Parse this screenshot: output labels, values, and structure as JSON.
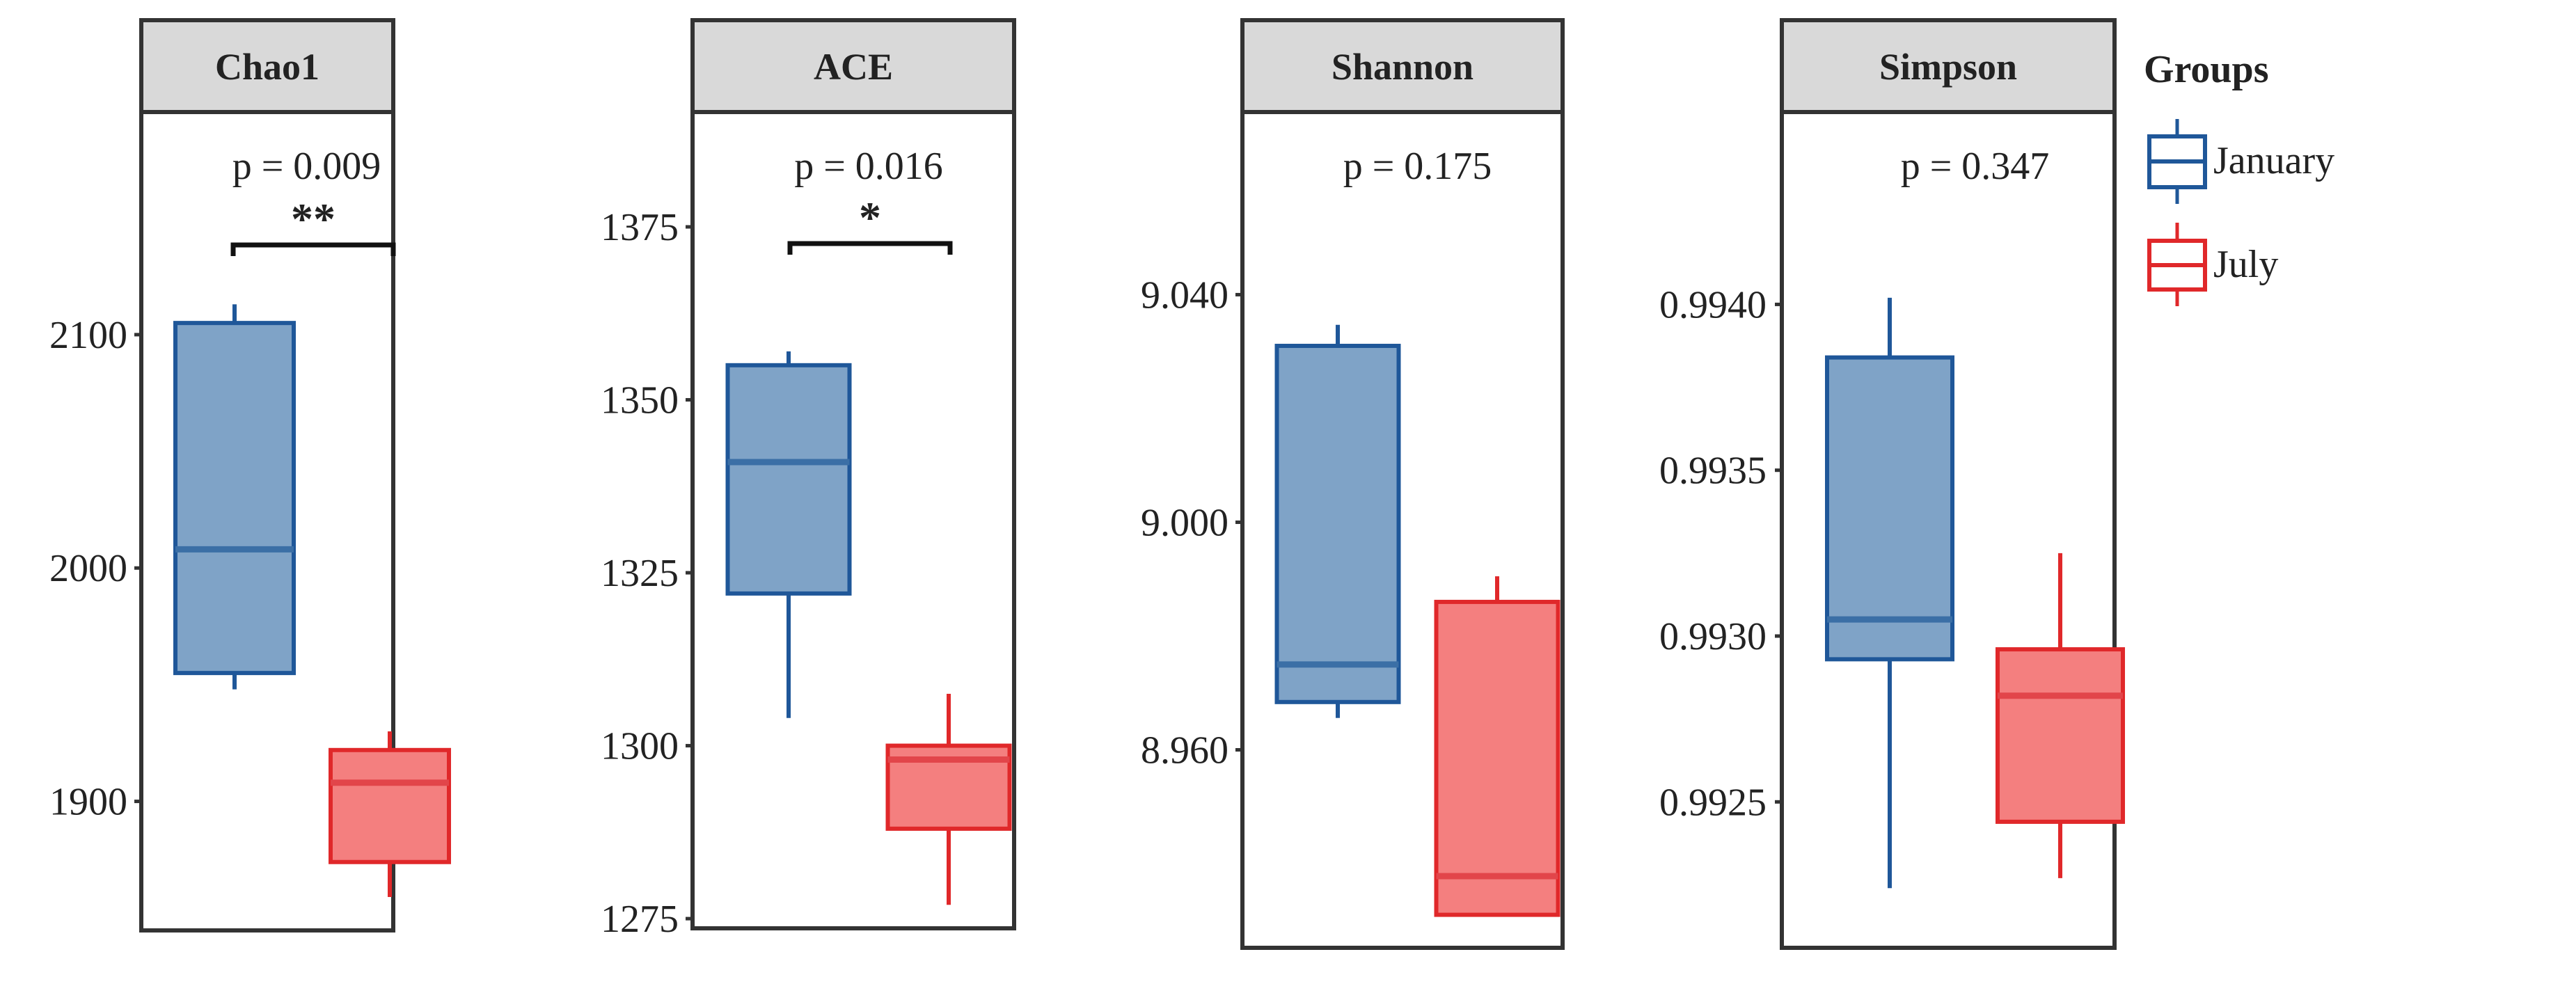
{
  "chart_data": {
    "type": "box",
    "legend": {
      "title": "Groups",
      "position": "right",
      "entries": [
        {
          "name": "January",
          "fill": "#7fa3c7",
          "stroke": "#1f5799"
        },
        {
          "name": "July",
          "fill": "#f47f7f",
          "stroke": "#e0282a"
        }
      ]
    },
    "panels": [
      {
        "title": "Chao1",
        "ylim": [
          1844.7,
          2195.4
        ],
        "yticks": [
          1900,
          2000,
          2100
        ],
        "tick_labels": [
          "1900",
          "2000",
          "2100"
        ],
        "p_value": "p = 0.009",
        "significance": "**",
        "groups": [
          {
            "name": "January",
            "whisker_low": 1948,
            "q1": 1955,
            "median": 2008,
            "q3": 2105,
            "whisker_high": 2113
          },
          {
            "name": "July",
            "whisker_low": 1859,
            "q1": 1874,
            "median": 1908,
            "q3": 1922,
            "whisker_high": 1930
          }
        ]
      },
      {
        "title": "ACE",
        "ylim": [
          1273.6,
          1391.6
        ],
        "yticks": [
          1275,
          1300,
          1325,
          1350,
          1375
        ],
        "tick_labels": [
          "1275",
          "1300",
          "1325",
          "1350",
          "1375"
        ],
        "p_value": "p = 0.016",
        "significance": "*",
        "groups": [
          {
            "name": "January",
            "whisker_low": 1304,
            "q1": 1322,
            "median": 1341,
            "q3": 1355,
            "whisker_high": 1357
          },
          {
            "name": "July",
            "whisker_low": 1277,
            "q1": 1288,
            "median": 1298,
            "q3": 1300,
            "whisker_high": 1307.5
          }
        ]
      },
      {
        "title": "Shannon",
        "ylim": [
          8.9252,
          9.0721
        ],
        "yticks": [
          8.96,
          9.0,
          9.04
        ],
        "tick_labels": [
          "8.960",
          "9.000",
          "9.040"
        ],
        "p_value": "p = 0.175",
        "significance": "",
        "groups": [
          {
            "name": "January",
            "whisker_low": 8.9656,
            "q1": 8.9684,
            "median": 8.975,
            "q3": 9.031,
            "whisker_high": 9.0347
          },
          {
            "name": "July",
            "whisker_low": 8.9308,
            "q1": 8.931,
            "median": 8.9378,
            "q3": 8.986,
            "whisker_high": 8.9905
          }
        ]
      },
      {
        "title": "Simpson",
        "ylim": [
          0.99206,
          0.99458
        ],
        "yticks": [
          0.9925,
          0.993,
          0.9935,
          0.994
        ],
        "tick_labels": [
          "0.9925",
          "0.9930",
          "0.9935",
          "0.9940"
        ],
        "p_value": "p = 0.347",
        "significance": "",
        "groups": [
          {
            "name": "January",
            "whisker_low": 0.99224,
            "q1": 0.99293,
            "median": 0.99305,
            "q3": 0.99384,
            "whisker_high": 0.99402
          },
          {
            "name": "July",
            "whisker_low": 0.99227,
            "q1": 0.99244,
            "median": 0.99282,
            "q3": 0.99296,
            "whisker_high": 0.99325
          }
        ]
      }
    ]
  }
}
